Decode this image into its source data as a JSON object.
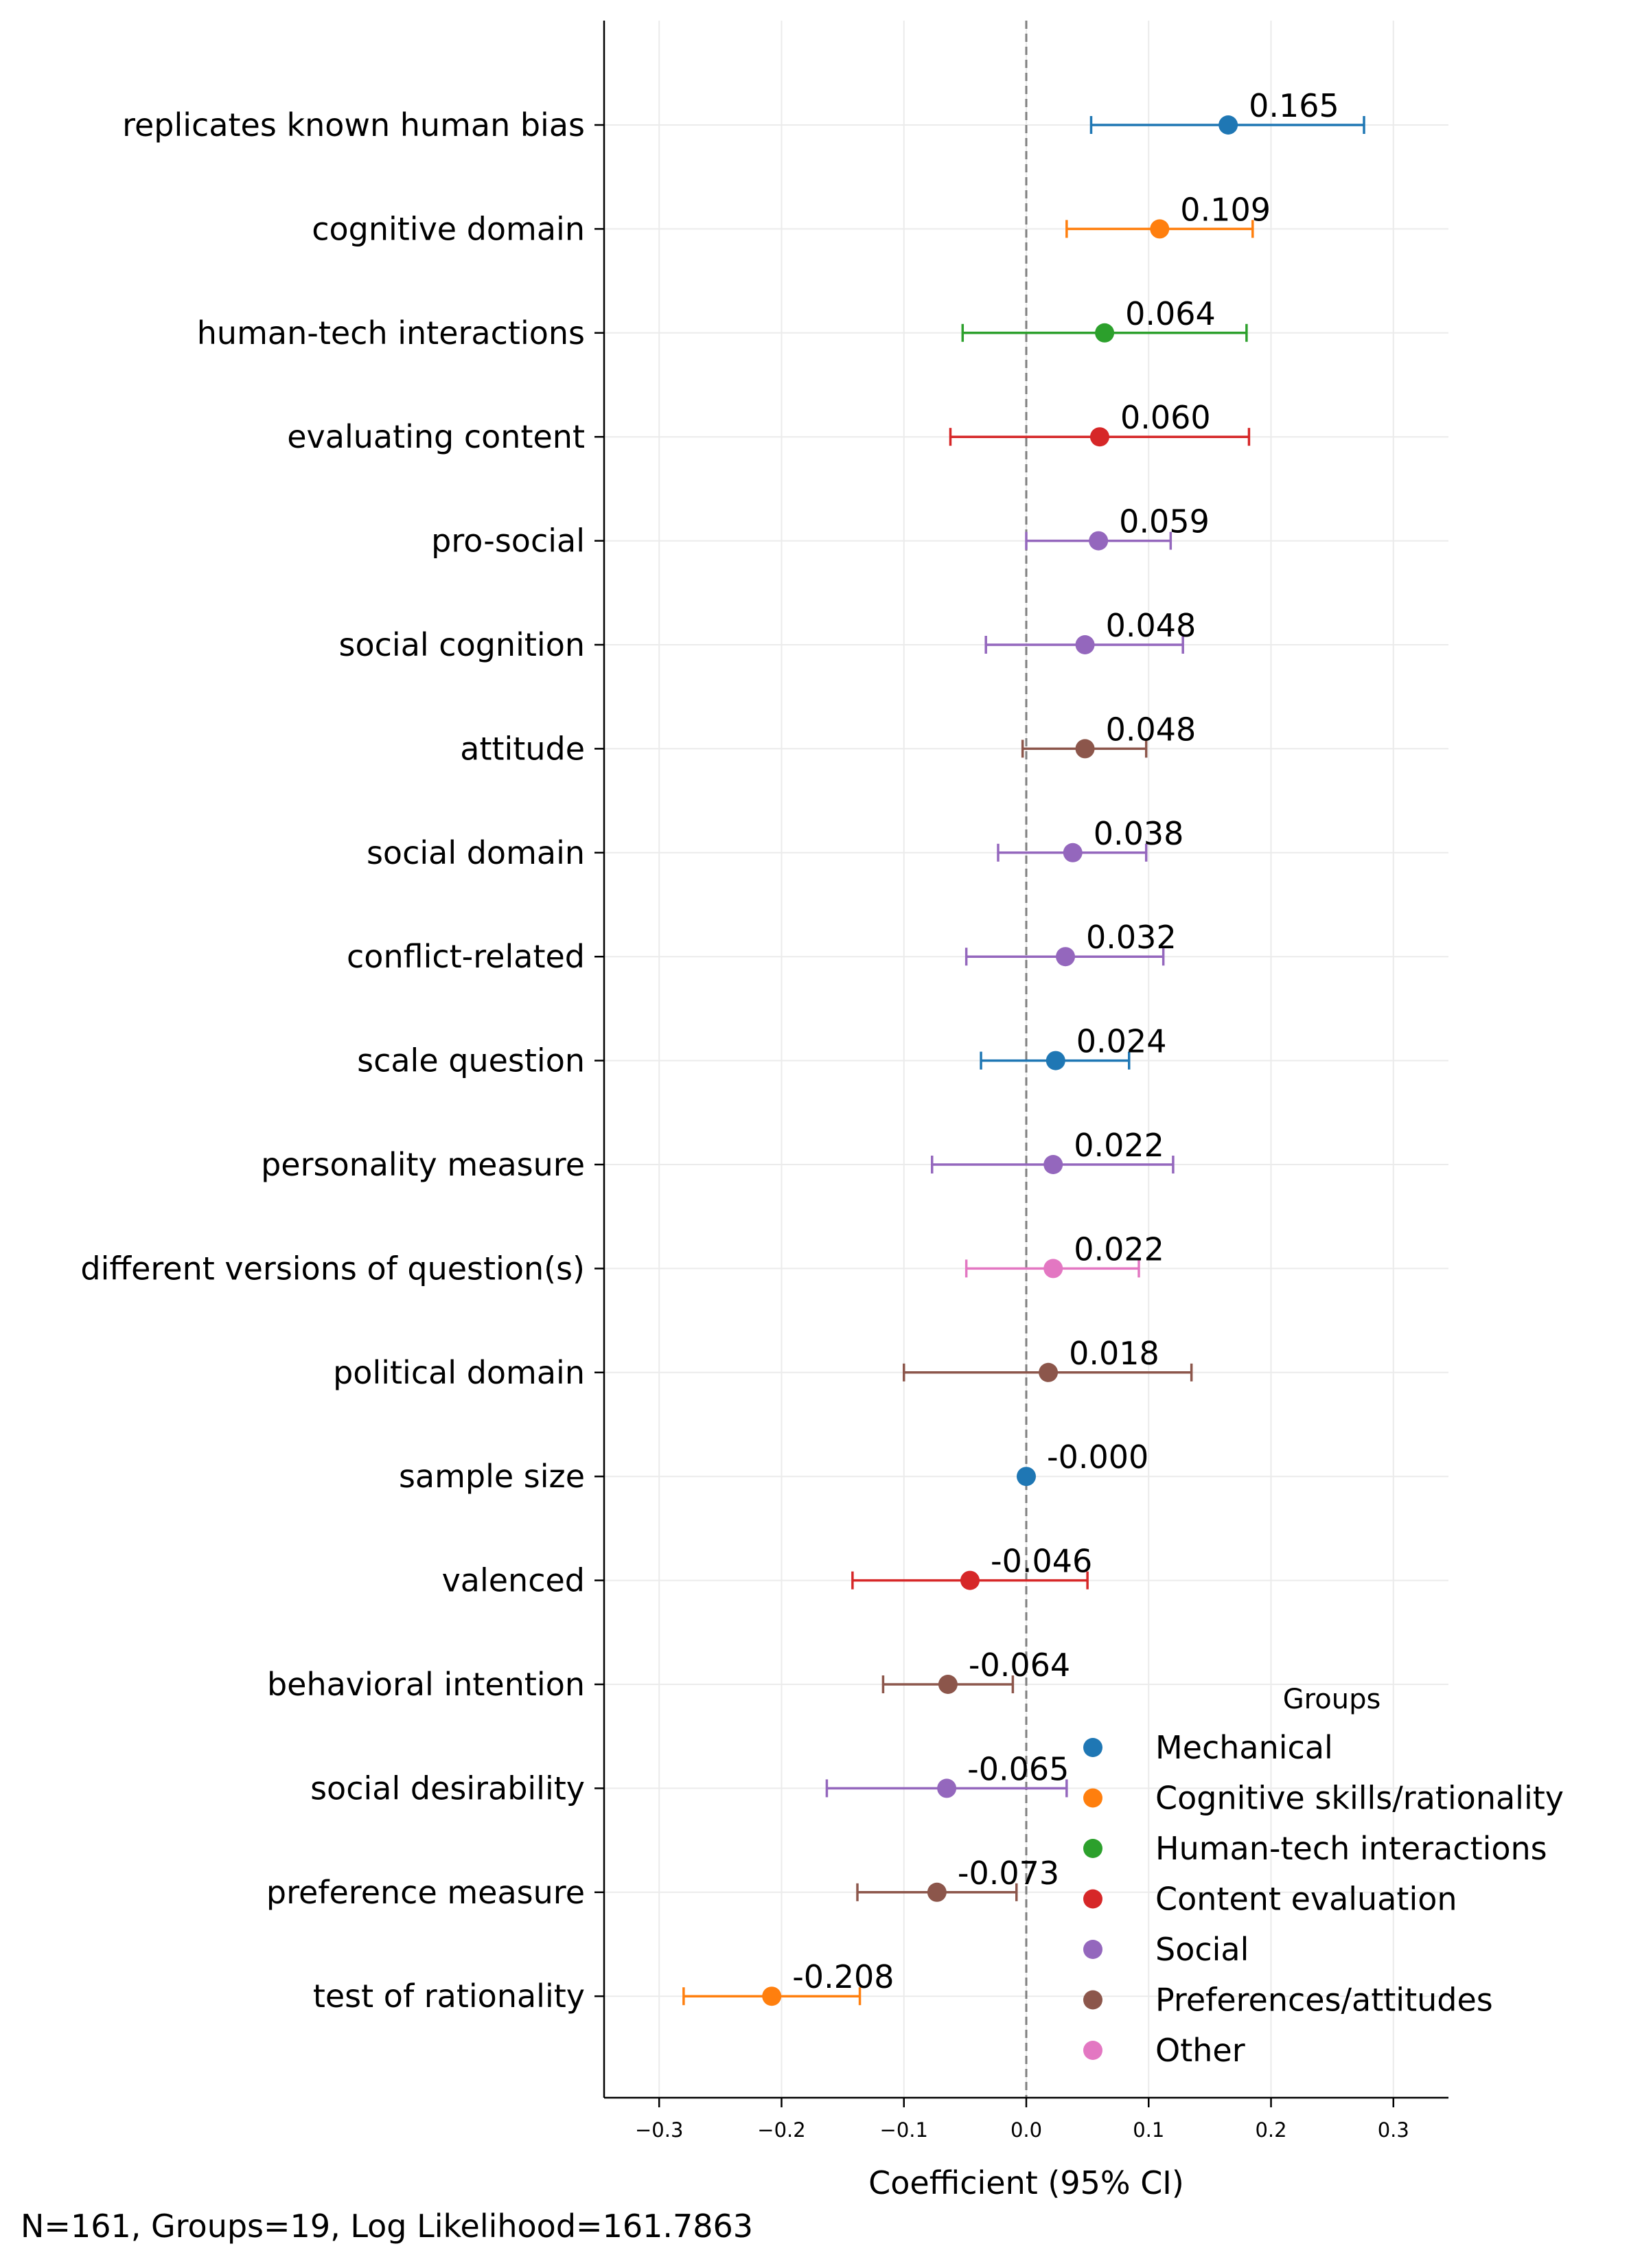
{
  "chart_data": {
    "type": "forest",
    "xlabel": "Coefficient (95% CI)",
    "xlim": [
      -0.345,
      0.345
    ],
    "xticks": [
      -0.3,
      -0.2,
      -0.1,
      0.0,
      0.1,
      0.2,
      0.3
    ],
    "xtick_labels": [
      "−0.3",
      "−0.2",
      "−0.1",
      "0.0",
      "0.1",
      "0.2",
      "0.3"
    ],
    "grid": true,
    "reference_line": 0.0,
    "legend": {
      "title": "Groups",
      "placement": "bottom-right",
      "entries": [
        {
          "name": "Mechanical",
          "color": "#1f77b4"
        },
        {
          "name": "Cognitive skills/rationality",
          "color": "#ff7f0e"
        },
        {
          "name": "Human-tech interactions",
          "color": "#2ca02c"
        },
        {
          "name": "Content evaluation",
          "color": "#d62728"
        },
        {
          "name": "Social",
          "color": "#9467bd"
        },
        {
          "name": "Preferences/attitudes",
          "color": "#8c564b"
        },
        {
          "name": "Other",
          "color": "#e377c2"
        }
      ]
    },
    "rows": [
      {
        "label": "replicates known human bias",
        "value": 0.165,
        "ci_low": 0.053,
        "ci_high": 0.276,
        "display": "0.165",
        "group": "Mechanical"
      },
      {
        "label": "cognitive domain",
        "value": 0.109,
        "ci_low": 0.033,
        "ci_high": 0.185,
        "display": "0.109",
        "group": "Cognitive skills/rationality"
      },
      {
        "label": "human-tech interactions",
        "value": 0.064,
        "ci_low": -0.052,
        "ci_high": 0.18,
        "display": "0.064",
        "group": "Human-tech interactions"
      },
      {
        "label": "evaluating content",
        "value": 0.06,
        "ci_low": -0.062,
        "ci_high": 0.182,
        "display": "0.060",
        "group": "Content evaluation"
      },
      {
        "label": "pro-social",
        "value": 0.059,
        "ci_low": 0.0,
        "ci_high": 0.118,
        "display": "0.059",
        "group": "Social"
      },
      {
        "label": "social cognition",
        "value": 0.048,
        "ci_low": -0.033,
        "ci_high": 0.128,
        "display": "0.048",
        "group": "Social"
      },
      {
        "label": "attitude",
        "value": 0.048,
        "ci_low": -0.003,
        "ci_high": 0.098,
        "display": "0.048",
        "group": "Preferences/attitudes"
      },
      {
        "label": "social domain",
        "value": 0.038,
        "ci_low": -0.023,
        "ci_high": 0.098,
        "display": "0.038",
        "group": "Social"
      },
      {
        "label": "conflict-related",
        "value": 0.032,
        "ci_low": -0.049,
        "ci_high": 0.112,
        "display": "0.032",
        "group": "Social"
      },
      {
        "label": "scale question",
        "value": 0.024,
        "ci_low": -0.037,
        "ci_high": 0.084,
        "display": "0.024",
        "group": "Mechanical"
      },
      {
        "label": "personality measure",
        "value": 0.022,
        "ci_low": -0.077,
        "ci_high": 0.12,
        "display": "0.022",
        "group": "Social"
      },
      {
        "label": "different versions of question(s)",
        "value": 0.022,
        "ci_low": -0.049,
        "ci_high": 0.092,
        "display": "0.022",
        "group": "Other"
      },
      {
        "label": "political domain",
        "value": 0.018,
        "ci_low": -0.1,
        "ci_high": 0.135,
        "display": "0.018",
        "group": "Preferences/attitudes"
      },
      {
        "label": "sample size",
        "value": 0.0,
        "ci_low": 0.0,
        "ci_high": 0.0,
        "display": "-0.000",
        "group": "Mechanical"
      },
      {
        "label": "valenced",
        "value": -0.046,
        "ci_low": -0.142,
        "ci_high": 0.05,
        "display": "-0.046",
        "group": "Content evaluation"
      },
      {
        "label": "behavioral intention",
        "value": -0.064,
        "ci_low": -0.117,
        "ci_high": -0.011,
        "display": "-0.064",
        "group": "Preferences/attitudes"
      },
      {
        "label": "social desirability",
        "value": -0.065,
        "ci_low": -0.163,
        "ci_high": 0.033,
        "display": "-0.065",
        "group": "Social"
      },
      {
        "label": "preference measure",
        "value": -0.073,
        "ci_low": -0.138,
        "ci_high": -0.008,
        "display": "-0.073",
        "group": "Preferences/attitudes"
      },
      {
        "label": "test of rationality",
        "value": -0.208,
        "ci_low": -0.28,
        "ci_high": -0.136,
        "display": "-0.208",
        "group": "Cognitive skills/rationality"
      }
    ]
  },
  "footer": {
    "stats": "N=161, Groups=19, Log Likelihood=161.7863"
  }
}
